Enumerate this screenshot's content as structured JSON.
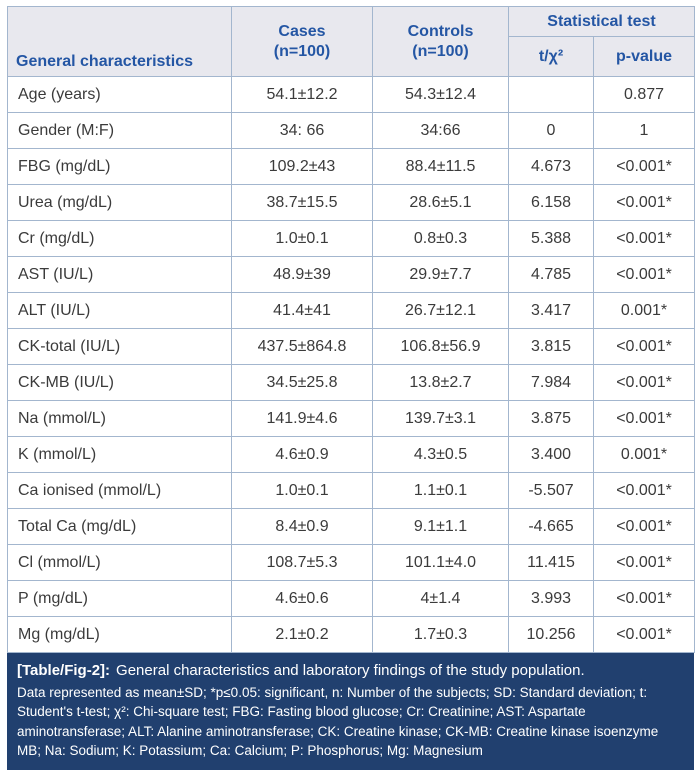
{
  "table": {
    "headers": {
      "characteristics": "General characteristics",
      "cases": "Cases\n(n=100)",
      "controls": "Controls\n(n=100)",
      "stat_group": "Statistical test",
      "t_chi": "t/χ²",
      "p_value": "p-value"
    },
    "rows": [
      {
        "label": "Age (years)",
        "cases": "54.1±12.2",
        "controls": "54.3±12.4",
        "t": "",
        "p": "0.877"
      },
      {
        "label": "Gender (M:F)",
        "cases": "34: 66",
        "controls": "34:66",
        "t": "0",
        "p": "1"
      },
      {
        "label": "FBG (mg/dL)",
        "cases": "109.2±43",
        "controls": "88.4±11.5",
        "t": "4.673",
        "p": "<0.001*"
      },
      {
        "label": "Urea (mg/dL)",
        "cases": "38.7±15.5",
        "controls": "28.6±5.1",
        "t": "6.158",
        "p": "<0.001*"
      },
      {
        "label": "Cr (mg/dL)",
        "cases": "1.0±0.1",
        "controls": "0.8±0.3",
        "t": "5.388",
        "p": "<0.001*"
      },
      {
        "label": "AST (IU/L)",
        "cases": "48.9±39",
        "controls": "29.9±7.7",
        "t": "4.785",
        "p": "<0.001*"
      },
      {
        "label": "ALT (IU/L)",
        "cases": "41.4±41",
        "controls": "26.7±12.1",
        "t": "3.417",
        "p": "0.001*"
      },
      {
        "label": "CK-total (IU/L)",
        "cases": "437.5±864.8",
        "controls": "106.8±56.9",
        "t": "3.815",
        "p": "<0.001*"
      },
      {
        "label": "CK-MB (IU/L)",
        "cases": "34.5±25.8",
        "controls": "13.8±2.7",
        "t": "7.984",
        "p": "<0.001*"
      },
      {
        "label": "Na (mmol/L)",
        "cases": "141.9±4.6",
        "controls": "139.7±3.1",
        "t": "3.875",
        "p": "<0.001*"
      },
      {
        "label": "K (mmol/L)",
        "cases": "4.6±0.9",
        "controls": "4.3±0.5",
        "t": "3.400",
        "p": "0.001*"
      },
      {
        "label": "Ca ionised (mmol/L)",
        "cases": "1.0±0.1",
        "controls": "1.1±0.1",
        "t": "-5.507",
        "p": "<0.001*"
      },
      {
        "label": "Total Ca (mg/dL)",
        "cases": "8.4±0.9",
        "controls": "9.1±1.1",
        "t": "-4.665",
        "p": "<0.001*"
      },
      {
        "label": "Cl (mmol/L)",
        "cases": "108.7±5.3",
        "controls": "101.1±4.0",
        "t": "11.415",
        "p": "<0.001*"
      },
      {
        "label": "P (mg/dL)",
        "cases": "4.6±0.6",
        "controls": "4±1.4",
        "t": "3.993",
        "p": "<0.001*"
      },
      {
        "label": "Mg (mg/dL)",
        "cases": "2.1±0.2",
        "controls": "1.7±0.3",
        "t": "10.256",
        "p": "<0.001*"
      }
    ]
  },
  "caption": {
    "label": "[Table/Fig-2]:",
    "title": "General characteristics and laboratory findings of the study population.",
    "notes": "Data represented as mean±SD; *p≤0.05: significant, n: Number of the subjects; SD: Standard deviation; t: Student's t-test; χ²: Chi-square test; FBG: Fasting blood glucose; Cr: Creatinine; AST: Aspartate aminotransferase; ALT: Alanine aminotransferase; CK: Creatine kinase; CK-MB: Creatine kinase isoenzyme MB; Na: Sodium; K: Potassium; Ca: Calcium; P: Phosphorus; Mg: Magnesium"
  },
  "colors": {
    "header_bg": "#e8e8ee",
    "header_text": "#2456a4",
    "border": "#a3b6ce",
    "body_text": "#3b3b3b",
    "footer_bg": "#21406f",
    "footer_text": "#ffffff"
  }
}
